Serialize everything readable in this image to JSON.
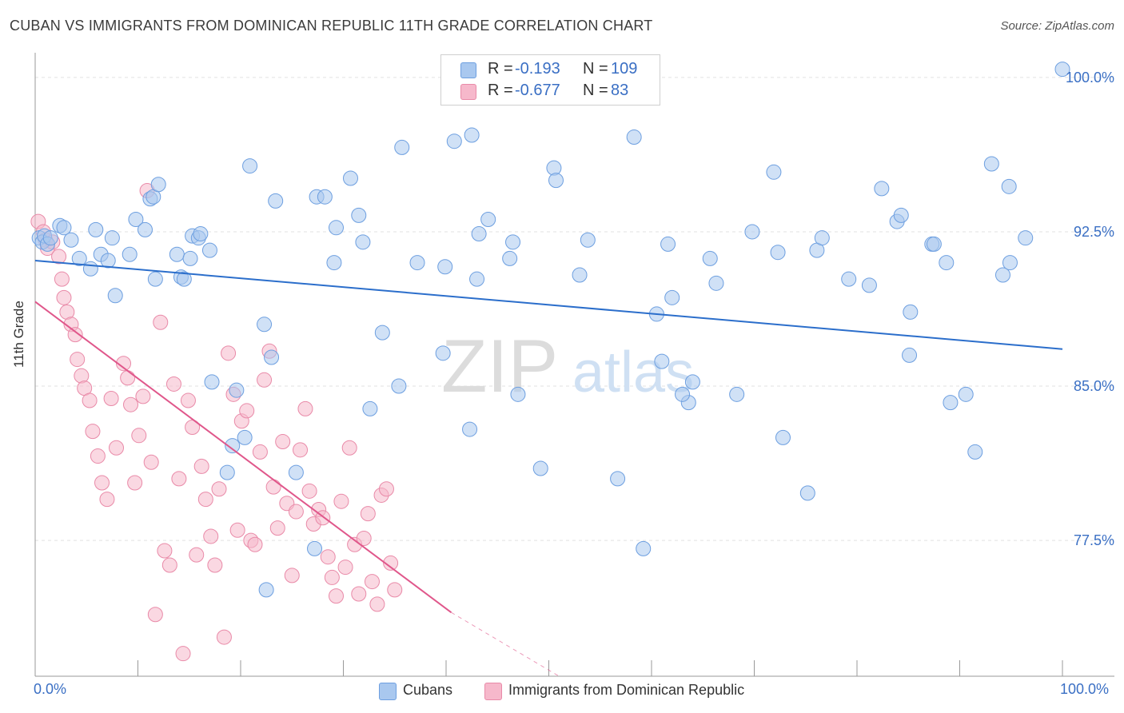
{
  "title": "CUBAN VS IMMIGRANTS FROM DOMINICAN REPUBLIC 11TH GRADE CORRELATION CHART",
  "source": "Source: ZipAtlas.com",
  "watermark": {
    "zip": "ZIP",
    "atlas": "atlas"
  },
  "legend_top": [
    {
      "r_label": "R =",
      "r_value": "-0.193",
      "n_label": "N =",
      "n_value": "109"
    },
    {
      "r_label": "R =",
      "r_value": "-0.677",
      "n_label": "N =",
      "n_value": "83"
    }
  ],
  "colors": {
    "cubans_fill": "#a9c8ef",
    "cubans_stroke": "#6d9fe0",
    "cubans_line": "#2b6ecb",
    "dominican_fill": "#f6b8cb",
    "dominican_stroke": "#e98aa8",
    "dominican_line": "#e0578b",
    "tick_label": "#3a6fc4",
    "grid": "#e2e2e2"
  },
  "chart_data": {
    "type": "scatter",
    "title": "CUBAN VS IMMIGRANTS FROM DOMINICAN REPUBLIC 11TH GRADE CORRELATION CHART",
    "xlabel": "",
    "ylabel": "11th Grade",
    "xlim": [
      0,
      100
    ],
    "ylim": [
      70.9,
      101.2
    ],
    "x_tick_labels": [
      "0.0%",
      "100.0%"
    ],
    "y_ticks": [
      77.5,
      85.0,
      92.5,
      100.0
    ],
    "y_tick_labels": [
      "77.5%",
      "85.0%",
      "92.5%",
      "100.0%"
    ],
    "grid": true,
    "legend_position": "bottom",
    "series": [
      {
        "name": "Cubans",
        "trend": {
          "x": [
            0,
            100
          ],
          "y": [
            91.1,
            86.8
          ]
        },
        "x": [
          0.4,
          0.7,
          0.9,
          1.2,
          1.5,
          2.4,
          2.8,
          3.5,
          4.3,
          5.4,
          5.9,
          6.4,
          7.1,
          7.5,
          7.8,
          9.2,
          9.8,
          10.7,
          11.2,
          11.5,
          11.7,
          12.0,
          13.8,
          14.2,
          14.5,
          15.1,
          15.3,
          15.9,
          16.1,
          17.0,
          17.2,
          18.7,
          19.2,
          19.6,
          20.4,
          20.9,
          22.3,
          22.5,
          23.0,
          23.4,
          25.4,
          27.2,
          27.4,
          28.2,
          29.1,
          29.3,
          30.7,
          31.5,
          31.9,
          32.6,
          33.8,
          35.4,
          35.7,
          37.2,
          39.7,
          39.9,
          40.8,
          42.3,
          42.5,
          43.2,
          44.1,
          46.2,
          46.5,
          49.2,
          50.5,
          50.7,
          53.0,
          53.8,
          56.7,
          58.3,
          59.2,
          60.5,
          61.0,
          61.6,
          62.0,
          63.6,
          64.0,
          65.7,
          66.3,
          68.3,
          69.8,
          71.9,
          72.3,
          72.8,
          75.2,
          76.1,
          76.6,
          79.2,
          81.2,
          82.4,
          83.9,
          84.3,
          85.1,
          85.2,
          87.3,
          87.5,
          88.7,
          89.1,
          90.6,
          91.5,
          93.1,
          94.2,
          94.8,
          94.9,
          96.4,
          100.0,
          47.0,
          63.0,
          43.0
        ],
        "y": [
          92.2,
          92.0,
          92.3,
          91.9,
          92.2,
          92.8,
          92.7,
          92.1,
          91.2,
          90.7,
          92.6,
          91.4,
          91.1,
          92.2,
          89.4,
          91.4,
          93.1,
          92.6,
          94.1,
          94.2,
          90.2,
          94.8,
          91.4,
          90.3,
          90.2,
          91.2,
          92.3,
          92.2,
          92.4,
          91.6,
          85.2,
          80.8,
          82.1,
          84.8,
          82.5,
          95.7,
          88.0,
          75.1,
          86.4,
          94.0,
          80.8,
          77.1,
          94.2,
          94.2,
          91.0,
          92.7,
          95.1,
          93.3,
          92.0,
          83.9,
          87.6,
          85.0,
          96.6,
          91.0,
          86.6,
          90.8,
          96.9,
          82.9,
          97.2,
          92.4,
          93.1,
          91.2,
          92.0,
          81.0,
          95.6,
          95.0,
          90.4,
          92.1,
          80.5,
          97.1,
          77.1,
          88.5,
          86.2,
          91.9,
          89.3,
          84.2,
          85.2,
          91.2,
          90.0,
          84.6,
          92.5,
          95.4,
          91.5,
          82.5,
          79.8,
          91.6,
          92.2,
          90.2,
          89.9,
          94.6,
          93.0,
          93.3,
          86.5,
          88.6,
          91.9,
          91.9,
          91.0,
          84.2,
          84.6,
          81.8,
          95.8,
          90.4,
          94.7,
          91.0,
          92.2,
          100.4,
          84.6,
          84.6,
          90.2
        ]
      },
      {
        "name": "Immigrants from Dominican Republic",
        "trend": {
          "x": [
            0,
            40.5
          ],
          "y": [
            89.1,
            74.0
          ],
          "dashed_to": {
            "x": 51,
            "y": 70.9
          }
        },
        "x": [
          0.3,
          0.8,
          1.0,
          1.2,
          1.7,
          2.3,
          2.6,
          2.8,
          3.1,
          3.5,
          3.9,
          4.1,
          4.5,
          4.8,
          5.3,
          5.6,
          6.1,
          6.5,
          7.0,
          7.4,
          7.9,
          8.6,
          9.0,
          9.3,
          9.7,
          10.1,
          10.5,
          10.9,
          11.3,
          11.7,
          12.2,
          12.6,
          13.1,
          13.5,
          14.0,
          14.4,
          14.9,
          15.3,
          15.7,
          16.2,
          16.6,
          17.1,
          17.5,
          17.9,
          18.4,
          18.8,
          19.3,
          19.7,
          20.1,
          20.6,
          21.0,
          21.4,
          21.9,
          22.3,
          22.8,
          23.2,
          23.6,
          24.1,
          24.5,
          25.0,
          25.4,
          25.8,
          26.3,
          26.7,
          27.1,
          27.6,
          28.0,
          28.5,
          28.9,
          29.3,
          29.8,
          30.2,
          30.6,
          31.1,
          31.5,
          32.0,
          32.4,
          32.8,
          33.3,
          33.7,
          34.2,
          34.6,
          35.0
        ],
        "y": [
          93.0,
          92.5,
          92.1,
          91.7,
          92.0,
          91.3,
          90.2,
          89.3,
          88.6,
          88.0,
          87.5,
          86.3,
          85.5,
          84.9,
          84.3,
          82.8,
          81.6,
          80.3,
          79.5,
          84.4,
          82.0,
          86.1,
          85.4,
          84.1,
          80.3,
          82.6,
          84.5,
          94.5,
          81.3,
          73.9,
          88.1,
          77.0,
          76.3,
          85.1,
          80.5,
          72.0,
          84.3,
          83.0,
          76.8,
          81.1,
          79.5,
          77.7,
          76.3,
          80.0,
          72.8,
          86.6,
          84.6,
          78.0,
          83.3,
          83.8,
          77.5,
          77.3,
          81.8,
          85.3,
          86.7,
          80.1,
          78.1,
          82.3,
          79.3,
          75.8,
          78.9,
          81.9,
          83.9,
          79.9,
          78.3,
          79.0,
          78.6,
          76.7,
          75.7,
          74.8,
          79.4,
          76.2,
          82.0,
          77.3,
          74.9,
          77.6,
          78.8,
          75.5,
          74.4,
          79.7,
          80.0,
          76.4,
          75.1
        ]
      }
    ]
  },
  "bottom_legend": {
    "cubans": "Cubans",
    "dominican": "Immigrants from Dominican Republic"
  },
  "x_axis_labels": {
    "left": "0.0%",
    "right": "100.0%"
  },
  "y_axis_label": "11th Grade"
}
